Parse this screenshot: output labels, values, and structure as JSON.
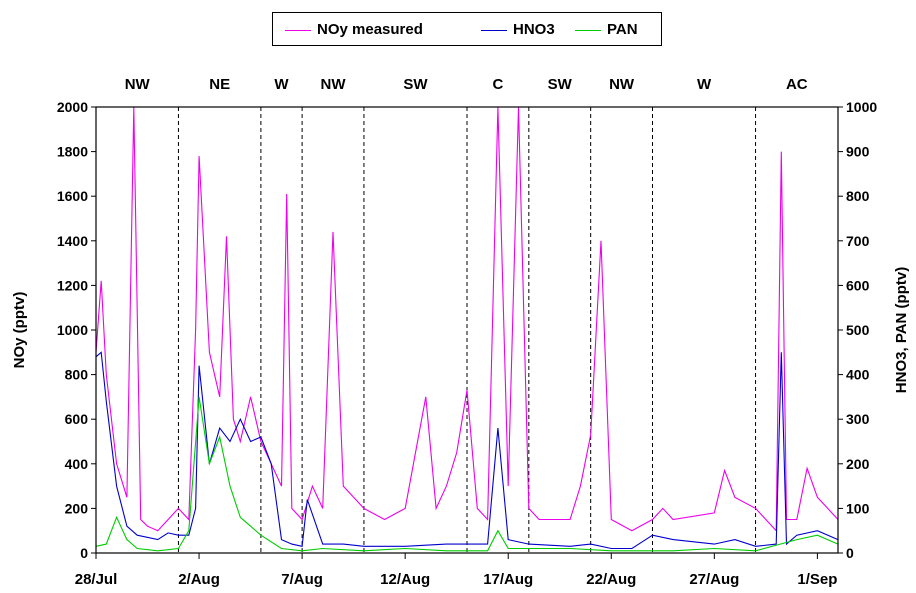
{
  "chart_data": {
    "type": "line",
    "title": "",
    "xlabel": "",
    "ylabel_left": "NOy (pptv)",
    "ylabel_right": "HNO3, PAN (pptv)",
    "ylim_left": [
      0,
      2000
    ],
    "ylim_right": [
      0,
      1000
    ],
    "yticks_left": [
      "0",
      "200",
      "400",
      "600",
      "800",
      "1000",
      "1200",
      "1400",
      "1600",
      "1800",
      "2000"
    ],
    "yticks_right": [
      "0",
      "100",
      "200",
      "300",
      "400",
      "500",
      "600",
      "700",
      "800",
      "900",
      "1000"
    ],
    "x_domain": [
      "2004-07-28",
      "2004-09-02"
    ],
    "xticks": [
      {
        "date": "2004-07-28",
        "label": "28/Jul"
      },
      {
        "date": "2004-08-02",
        "label": "2/Aug"
      },
      {
        "date": "2004-08-07",
        "label": "7/Aug"
      },
      {
        "date": "2004-08-12",
        "label": "12/Aug"
      },
      {
        "date": "2004-08-17",
        "label": "17/Aug"
      },
      {
        "date": "2004-08-22",
        "label": "22/Aug"
      },
      {
        "date": "2004-08-27",
        "label": "27/Aug"
      },
      {
        "date": "2004-09-01",
        "label": "1/Sep"
      }
    ],
    "regimes": [
      {
        "label": "NW",
        "start": "2004-07-28",
        "end": "2004-08-01"
      },
      {
        "label": "NE",
        "start": "2004-08-01",
        "end": "2004-08-05"
      },
      {
        "label": "W",
        "start": "2004-08-05",
        "end": "2004-08-07"
      },
      {
        "label": "NW",
        "start": "2004-08-07",
        "end": "2004-08-10"
      },
      {
        "label": "SW",
        "start": "2004-08-10",
        "end": "2004-08-15"
      },
      {
        "label": "C",
        "start": "2004-08-15",
        "end": "2004-08-18"
      },
      {
        "label": "SW",
        "start": "2004-08-18",
        "end": "2004-08-21"
      },
      {
        "label": "NW",
        "start": "2004-08-21",
        "end": "2004-08-24"
      },
      {
        "label": "W",
        "start": "2004-08-24",
        "end": "2004-08-29"
      },
      {
        "label": "AC",
        "start": "2004-08-29",
        "end": "2004-09-02"
      }
    ],
    "legend_position": "top-center",
    "series": [
      {
        "name": "NOy measured",
        "axis": "left",
        "color": "#ee00ee",
        "points": [
          [
            "2004-07-28 00:00",
            900
          ],
          [
            "2004-07-28 06:00",
            1220
          ],
          [
            "2004-07-28 12:00",
            800
          ],
          [
            "2004-07-29 00:00",
            400
          ],
          [
            "2004-07-29 12:00",
            250
          ],
          [
            "2004-07-29 20:00",
            2000
          ],
          [
            "2004-07-30 04:00",
            150
          ],
          [
            "2004-07-30 12:00",
            120
          ],
          [
            "2004-07-31 00:00",
            100
          ],
          [
            "2004-07-31 12:00",
            150
          ],
          [
            "2004-08-01 00:00",
            200
          ],
          [
            "2004-08-01 12:00",
            150
          ],
          [
            "2004-08-01 20:00",
            1000
          ],
          [
            "2004-08-02 00:00",
            1780
          ],
          [
            "2004-08-02 12:00",
            900
          ],
          [
            "2004-08-03 00:00",
            700
          ],
          [
            "2004-08-03 08:00",
            1420
          ],
          [
            "2004-08-03 16:00",
            600
          ],
          [
            "2004-08-04 00:00",
            500
          ],
          [
            "2004-08-04 12:00",
            700
          ],
          [
            "2004-08-05 00:00",
            500
          ],
          [
            "2004-08-05 12:00",
            400
          ],
          [
            "2004-08-06 00:00",
            300
          ],
          [
            "2004-08-06 06:00",
            1610
          ],
          [
            "2004-08-06 12:00",
            200
          ],
          [
            "2004-08-07 00:00",
            150
          ],
          [
            "2004-08-07 12:00",
            300
          ],
          [
            "2004-08-08 00:00",
            200
          ],
          [
            "2004-08-08 12:00",
            1440
          ],
          [
            "2004-08-09 00:00",
            300
          ],
          [
            "2004-08-09 12:00",
            250
          ],
          [
            "2004-08-10 00:00",
            200
          ],
          [
            "2004-08-11 00:00",
            150
          ],
          [
            "2004-08-12 00:00",
            200
          ],
          [
            "2004-08-13 00:00",
            700
          ],
          [
            "2004-08-13 12:00",
            200
          ],
          [
            "2004-08-14 00:00",
            300
          ],
          [
            "2004-08-14 12:00",
            450
          ],
          [
            "2004-08-15 00:00",
            730
          ],
          [
            "2004-08-15 12:00",
            200
          ],
          [
            "2004-08-16 00:00",
            150
          ],
          [
            "2004-08-16 12:00",
            2000
          ],
          [
            "2004-08-17 00:00",
            300
          ],
          [
            "2004-08-17 12:00",
            2000
          ],
          [
            "2004-08-18 00:00",
            200
          ],
          [
            "2004-08-18 12:00",
            150
          ],
          [
            "2004-08-19 00:00",
            150
          ],
          [
            "2004-08-20 00:00",
            150
          ],
          [
            "2004-08-20 12:00",
            300
          ],
          [
            "2004-08-21 00:00",
            530
          ],
          [
            "2004-08-21 12:00",
            1400
          ],
          [
            "2004-08-22 00:00",
            150
          ],
          [
            "2004-08-23 00:00",
            100
          ],
          [
            "2004-08-24 00:00",
            150
          ],
          [
            "2004-08-24 12:00",
            200
          ],
          [
            "2004-08-25 00:00",
            150
          ],
          [
            "2004-08-27 00:00",
            180
          ],
          [
            "2004-08-27 12:00",
            370
          ],
          [
            "2004-08-28 00:00",
            250
          ],
          [
            "2004-08-29 00:00",
            200
          ],
          [
            "2004-08-30 00:00",
            100
          ],
          [
            "2004-08-30 06:00",
            1800
          ],
          [
            "2004-08-30 12:00",
            150
          ],
          [
            "2004-08-31 00:00",
            150
          ],
          [
            "2004-08-31 12:00",
            380
          ],
          [
            "2004-09-01 00:00",
            250
          ],
          [
            "2004-09-01 12:00",
            200
          ],
          [
            "2004-09-02 00:00",
            150
          ]
        ]
      },
      {
        "name": "HNO3",
        "axis": "right",
        "color": "#0000cc",
        "points": [
          [
            "2004-07-28 00:00",
            440
          ],
          [
            "2004-07-28 06:00",
            450
          ],
          [
            "2004-07-28 12:00",
            340
          ],
          [
            "2004-07-29 00:00",
            150
          ],
          [
            "2004-07-29 12:00",
            60
          ],
          [
            "2004-07-30 00:00",
            40
          ],
          [
            "2004-07-31 00:00",
            30
          ],
          [
            "2004-07-31 12:00",
            45
          ],
          [
            "2004-08-01 00:00",
            40
          ],
          [
            "2004-08-01 12:00",
            40
          ],
          [
            "2004-08-01 20:00",
            100
          ],
          [
            "2004-08-02 00:00",
            420
          ],
          [
            "2004-08-02 12:00",
            200
          ],
          [
            "2004-08-03 00:00",
            280
          ],
          [
            "2004-08-03 12:00",
            250
          ],
          [
            "2004-08-04 00:00",
            300
          ],
          [
            "2004-08-04 12:00",
            250
          ],
          [
            "2004-08-05 00:00",
            260
          ],
          [
            "2004-08-05 12:00",
            200
          ],
          [
            "2004-08-06 00:00",
            30
          ],
          [
            "2004-08-06 12:00",
            20
          ],
          [
            "2004-08-07 00:00",
            15
          ],
          [
            "2004-08-07 06:00",
            120
          ],
          [
            "2004-08-08 00:00",
            20
          ],
          [
            "2004-08-09 00:00",
            20
          ],
          [
            "2004-08-10 00:00",
            15
          ],
          [
            "2004-08-12 00:00",
            15
          ],
          [
            "2004-08-14 00:00",
            20
          ],
          [
            "2004-08-16 00:00",
            20
          ],
          [
            "2004-08-16 12:00",
            280
          ],
          [
            "2004-08-17 00:00",
            30
          ],
          [
            "2004-08-18 00:00",
            20
          ],
          [
            "2004-08-20 00:00",
            15
          ],
          [
            "2004-08-21 00:00",
            20
          ],
          [
            "2004-08-22 00:00",
            10
          ],
          [
            "2004-08-23 00:00",
            10
          ],
          [
            "2004-08-24 00:00",
            40
          ],
          [
            "2004-08-25 00:00",
            30
          ],
          [
            "2004-08-27 00:00",
            20
          ],
          [
            "2004-08-28 00:00",
            30
          ],
          [
            "2004-08-29 00:00",
            15
          ],
          [
            "2004-08-30 00:00",
            20
          ],
          [
            "2004-08-30 06:00",
            450
          ],
          [
            "2004-08-30 12:00",
            20
          ],
          [
            "2004-08-31 00:00",
            40
          ],
          [
            "2004-09-01 00:00",
            50
          ],
          [
            "2004-09-02 00:00",
            30
          ]
        ]
      },
      {
        "name": "PAN",
        "axis": "right",
        "color": "#00cc00",
        "points": [
          [
            "2004-07-28 00:00",
            15
          ],
          [
            "2004-07-28 12:00",
            20
          ],
          [
            "2004-07-29 00:00",
            80
          ],
          [
            "2004-07-29 12:00",
            30
          ],
          [
            "2004-07-30 00:00",
            10
          ],
          [
            "2004-07-31 00:00",
            5
          ],
          [
            "2004-08-01 00:00",
            10
          ],
          [
            "2004-08-01 12:00",
            50
          ],
          [
            "2004-08-02 00:00",
            350
          ],
          [
            "2004-08-02 12:00",
            200
          ],
          [
            "2004-08-03 00:00",
            260
          ],
          [
            "2004-08-03 12:00",
            150
          ],
          [
            "2004-08-04 00:00",
            80
          ],
          [
            "2004-08-04 12:00",
            60
          ],
          [
            "2004-08-05 00:00",
            40
          ],
          [
            "2004-08-06 00:00",
            10
          ],
          [
            "2004-08-07 00:00",
            5
          ],
          [
            "2004-08-08 00:00",
            10
          ],
          [
            "2004-08-10 00:00",
            5
          ],
          [
            "2004-08-12 00:00",
            10
          ],
          [
            "2004-08-14 00:00",
            5
          ],
          [
            "2004-08-16 00:00",
            5
          ],
          [
            "2004-08-16 12:00",
            50
          ],
          [
            "2004-08-17 00:00",
            10
          ],
          [
            "2004-08-20 00:00",
            10
          ],
          [
            "2004-08-22 00:00",
            5
          ],
          [
            "2004-08-25 00:00",
            5
          ],
          [
            "2004-08-27 00:00",
            10
          ],
          [
            "2004-08-29 00:00",
            5
          ],
          [
            "2004-08-31 00:00",
            30
          ],
          [
            "2004-09-01 00:00",
            40
          ],
          [
            "2004-09-02 00:00",
            20
          ]
        ]
      }
    ]
  }
}
